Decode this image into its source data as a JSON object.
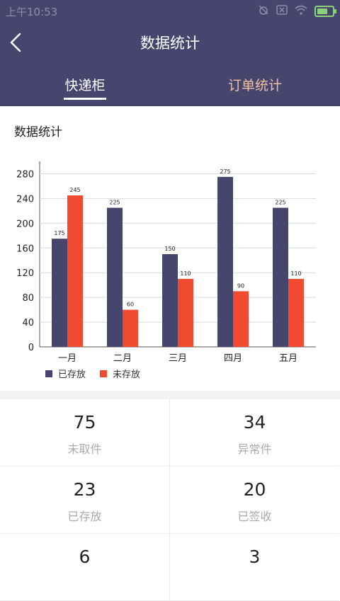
{
  "status_bar": {
    "time": "上午10:53",
    "icons": [
      "alarm-off-icon",
      "sim-off-icon",
      "wifi-icon",
      "battery-charging-icon"
    ]
  },
  "header": {
    "title": "数据统计",
    "back_icon": "chevron-left-icon"
  },
  "tabs": [
    {
      "label": "快递柜",
      "active": true
    },
    {
      "label": "订单统计",
      "active": false
    }
  ],
  "section": {
    "title": "数据统计"
  },
  "colors": {
    "primary": "#45456e",
    "stored": "#45456e",
    "not_stored": "#f04a30",
    "tab_inactive": "#f2c2a7"
  },
  "chart_data": {
    "type": "bar",
    "categories": [
      "一月",
      "二月",
      "三月",
      "四月",
      "五月"
    ],
    "series": [
      {
        "name": "已存放",
        "values": [
          175,
          225,
          150,
          275,
          225
        ],
        "color": "#45456e"
      },
      {
        "name": "未存放",
        "values": [
          245,
          60,
          110,
          90,
          110
        ],
        "color": "#f04a30"
      }
    ],
    "yticks": [
      0,
      40,
      80,
      120,
      160,
      200,
      240,
      280
    ],
    "ylim": [
      0,
      300
    ],
    "grid": true,
    "legend_position": "bottom-left",
    "data_labels": true
  },
  "stats": [
    {
      "value": "75",
      "label": "未取件"
    },
    {
      "value": "34",
      "label": "异常件"
    },
    {
      "value": "23",
      "label": "已存放"
    },
    {
      "value": "20",
      "label": "已签收"
    },
    {
      "value": "6",
      "label": ""
    },
    {
      "value": "3",
      "label": ""
    }
  ]
}
